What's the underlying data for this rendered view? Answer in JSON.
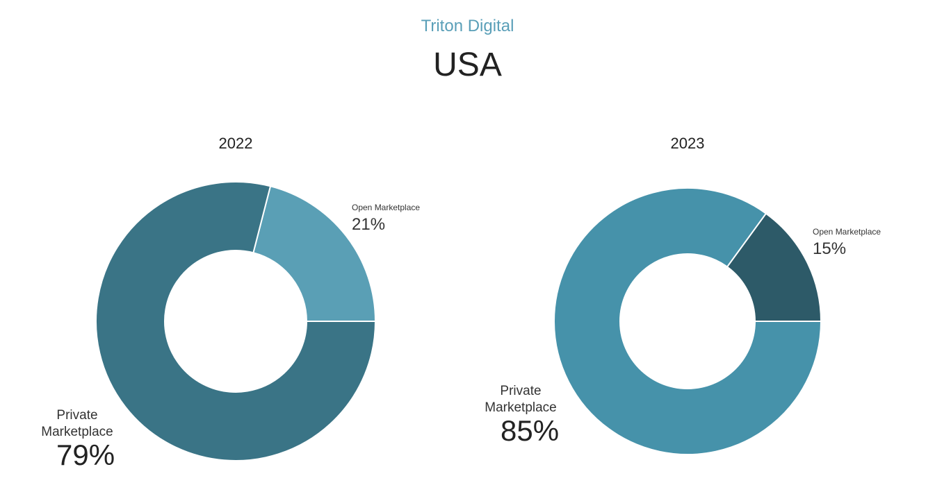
{
  "header": {
    "brand": "Triton Digital",
    "title": "USA"
  },
  "chart_data": [
    {
      "type": "pie",
      "title": "2022",
      "categories": [
        "Open Marketplace",
        "Private Marketplace"
      ],
      "values": [
        21,
        79
      ],
      "labels": [
        "21%",
        "79%"
      ],
      "colors": [
        "#5a9fb5",
        "#3a7486"
      ]
    },
    {
      "type": "pie",
      "title": "2023",
      "categories": [
        "Open Marketplace",
        "Private Marketplace"
      ],
      "values": [
        15,
        85
      ],
      "labels": [
        "15%",
        "85%"
      ],
      "colors": [
        "#2d5a68",
        "#4692aa"
      ]
    }
  ]
}
